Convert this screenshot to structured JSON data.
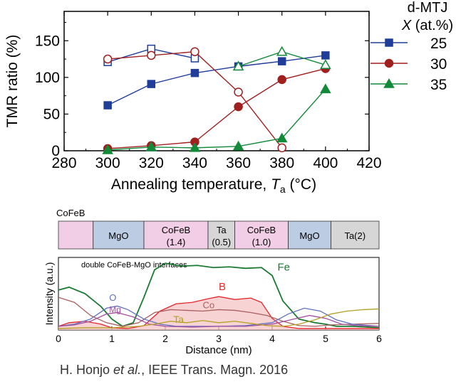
{
  "chart_data": [
    {
      "type": "line",
      "title": "",
      "xlabel": "Annealing temperature, T",
      "xlabel_sub": "a",
      "xlabel_unit": " (°C)",
      "ylabel": "TMR ratio (%)",
      "xlim": [
        280,
        420
      ],
      "ylim": [
        0,
        190
      ],
      "xticks": [
        280,
        300,
        320,
        340,
        360,
        380,
        400,
        420
      ],
      "yticks": [
        0,
        50,
        100,
        150
      ],
      "legend_title_1": "d-MTJ",
      "legend_title_2_prefix": "X",
      "legend_title_2_suffix": " (at.%)",
      "series": [
        {
          "name": "25",
          "color": "#1f3d99",
          "marker": "square",
          "lower": {
            "x": [
              300,
              320,
              340,
              360,
              380,
              400
            ],
            "y": [
              62,
              91,
              106,
              115,
              122,
              130
            ]
          },
          "upper": {
            "x": [
              300,
              320,
              340
            ],
            "y": [
              121,
              139,
              126
            ]
          }
        },
        {
          "name": "30",
          "color": "#a01f1f",
          "marker": "circle",
          "lower": {
            "x": [
              300,
              320,
              340,
              360,
              380,
              400
            ],
            "y": [
              3,
              7,
              12,
              60,
              97,
              112
            ]
          },
          "upper": {
            "x": [
              300,
              320,
              340,
              360,
              380
            ],
            "y": [
              125,
              130,
              135,
              80,
              4
            ]
          }
        },
        {
          "name": "35",
          "color": "#128a3a",
          "marker": "triangle",
          "lower": {
            "x": [
              300,
              320,
              340,
              360,
              380,
              400
            ],
            "y": [
              1,
              5,
              4,
              6,
              17,
              84
            ]
          },
          "upper": {
            "x": [
              360,
              380,
              400
            ],
            "y": [
              115,
              135,
              117
            ]
          }
        }
      ]
    },
    {
      "type": "line",
      "title": "double CoFeB-MgO interfaces",
      "xlabel": "Distance (nm)",
      "ylabel": "Intensity (a.u.)",
      "xlim": [
        0,
        6
      ],
      "ylim": [
        0,
        1
      ],
      "xticks": [
        0,
        1,
        2,
        3,
        4,
        5,
        6
      ],
      "stack_label": "CoFeB",
      "layers": [
        {
          "label": "",
          "sub": "",
          "start": 0,
          "end": 0.65,
          "color": "#f2cde6"
        },
        {
          "label": "MgO",
          "sub": "",
          "start": 0.65,
          "end": 1.6,
          "color": "#bccde3"
        },
        {
          "label": "CoFeB",
          "sub": "(1.4)",
          "start": 1.6,
          "end": 2.8,
          "color": "#f2cde6"
        },
        {
          "label": "Ta",
          "sub": "(0.5)",
          "start": 2.8,
          "end": 3.3,
          "color": "#d6d6d6"
        },
        {
          "label": "CoFeB",
          "sub": "(1.0)",
          "start": 3.3,
          "end": 4.3,
          "color": "#f2cde6"
        },
        {
          "label": "MgO",
          "sub": "",
          "start": 4.3,
          "end": 5.1,
          "color": "#bccde3"
        },
        {
          "label": "Ta(2)",
          "sub": "",
          "start": 5.1,
          "end": 6.0,
          "color": "#d6d6d6"
        }
      ],
      "series": [
        {
          "name": "Fe",
          "color": "#1a7a32",
          "label_at": [
            4.1,
            0.82
          ],
          "x": [
            0,
            0.2,
            0.5,
            0.8,
            1.0,
            1.2,
            1.4,
            1.6,
            1.8,
            2.0,
            2.3,
            2.6,
            2.9,
            3.2,
            3.5,
            3.8,
            4.0,
            4.2,
            4.5,
            4.8,
            5.0,
            5.2,
            5.5,
            5.8,
            6.0
          ],
          "y": [
            0.55,
            0.59,
            0.5,
            0.32,
            0.15,
            0.05,
            0.1,
            0.45,
            0.83,
            0.92,
            0.88,
            0.89,
            0.86,
            0.87,
            0.85,
            0.86,
            0.75,
            0.4,
            0.15,
            0.1,
            0.08,
            0.05,
            0.05,
            0.04,
            0.03
          ]
        },
        {
          "name": "B",
          "color": "#e8252a",
          "label_at": [
            3.0,
            0.55
          ],
          "x": [
            0,
            0.2,
            0.5,
            0.8,
            1.0,
            1.3,
            1.6,
            1.9,
            2.2,
            2.5,
            2.8,
            3.0,
            3.3,
            3.6,
            3.8,
            4.0,
            4.2,
            4.5,
            5.0,
            6.0
          ],
          "y": [
            0.05,
            0.1,
            0.12,
            0.08,
            0.03,
            0.02,
            0.06,
            0.26,
            0.36,
            0.38,
            0.43,
            0.46,
            0.42,
            0.44,
            0.38,
            0.16,
            0.05,
            0.02,
            0.02,
            0.02
          ]
        },
        {
          "name": "Co",
          "color": "#a86060",
          "label_at": [
            2.7,
            0.3
          ],
          "x": [
            0,
            0.3,
            0.6,
            0.9,
            1.2,
            1.5,
            1.8,
            2.1,
            2.4,
            2.7,
            3.0,
            3.3,
            3.6,
            3.9,
            4.2,
            4.5,
            4.8,
            5.1,
            5.5,
            6.0
          ],
          "y": [
            0.45,
            0.38,
            0.2,
            0.1,
            0.05,
            0.1,
            0.24,
            0.28,
            0.27,
            0.26,
            0.28,
            0.27,
            0.24,
            0.2,
            0.12,
            0.06,
            0.05,
            0.07,
            0.08,
            0.09
          ]
        },
        {
          "name": "O",
          "color": "#6070c0",
          "label_at": [
            0.95,
            0.4
          ],
          "x": [
            0,
            0.3,
            0.6,
            0.9,
            1.1,
            1.3,
            1.6,
            1.9,
            2.2,
            2.5,
            3.0,
            3.5,
            4.0,
            4.3,
            4.6,
            4.9,
            5.2,
            5.5,
            6.0
          ],
          "y": [
            0.05,
            0.08,
            0.15,
            0.3,
            0.33,
            0.28,
            0.15,
            0.08,
            0.05,
            0.05,
            0.05,
            0.06,
            0.1,
            0.22,
            0.3,
            0.26,
            0.14,
            0.08,
            0.05
          ]
        },
        {
          "name": "Mg",
          "color": "#a050a0",
          "label_at": [
            0.95,
            0.24
          ],
          "x": [
            0,
            0.3,
            0.6,
            0.9,
            1.1,
            1.4,
            1.7,
            2.0,
            2.5,
            3.0,
            3.5,
            4.0,
            4.4,
            4.7,
            5.0,
            5.3,
            5.6,
            6.0
          ],
          "y": [
            0.05,
            0.07,
            0.12,
            0.22,
            0.24,
            0.18,
            0.08,
            0.05,
            0.04,
            0.05,
            0.05,
            0.08,
            0.15,
            0.2,
            0.16,
            0.08,
            0.06,
            0.05
          ]
        },
        {
          "name": "Ta",
          "color": "#b4a024",
          "label_at": [
            2.15,
            0.1
          ],
          "x": [
            0,
            0.5,
            1.0,
            1.5,
            1.8,
            2.1,
            2.4,
            2.7,
            3.0,
            3.3,
            3.6,
            3.9,
            4.2,
            4.5,
            4.8,
            5.1,
            5.4,
            5.7,
            6.0
          ],
          "y": [
            0.02,
            0.03,
            0.03,
            0.05,
            0.08,
            0.12,
            0.1,
            0.13,
            0.1,
            0.12,
            0.09,
            0.06,
            0.05,
            0.08,
            0.14,
            0.22,
            0.26,
            0.28,
            0.29
          ]
        }
      ]
    }
  ],
  "citation": {
    "authors_prefix": "H. Honjo ",
    "etal": "et al.",
    "journal": ", IEEE Trans. Magn. 2016"
  }
}
